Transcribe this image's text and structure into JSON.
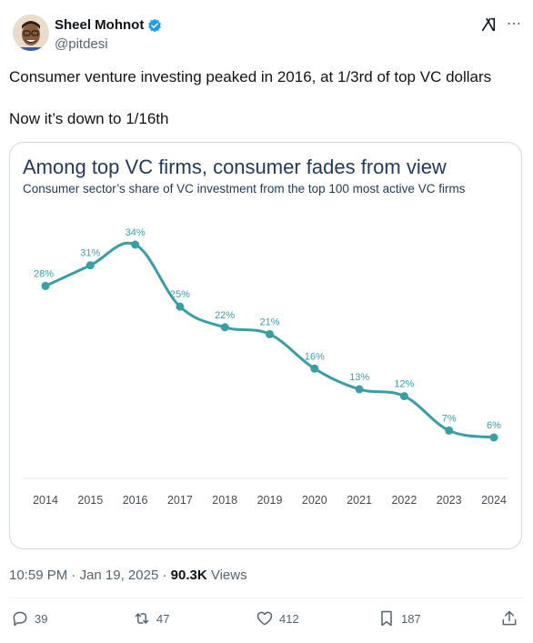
{
  "author": {
    "name": "Sheel Mohnot",
    "handle": "@pitdesi"
  },
  "tweet": {
    "line1": "Consumer venture investing peaked in 2016, at 1/3rd of top VC dollars",
    "line2": "Now it’s down to 1/16th"
  },
  "chart_data": {
    "type": "line",
    "title": "Among top VC firms, consumer fades from view",
    "subtitle": "Consumer sector’s share of VC investment from the top 100 most active VC firms",
    "x": [
      "2014",
      "2015",
      "2016",
      "2017",
      "2018",
      "2019",
      "2020",
      "2021",
      "2022",
      "2023",
      "2024"
    ],
    "series": [
      {
        "values": [
          28,
          31,
          34,
          25,
          22,
          21,
          16,
          13,
          12,
          7,
          6
        ],
        "labels": [
          "28%",
          "31%",
          "34%",
          "25%",
          "22%",
          "21%",
          "16%",
          "13%",
          "12%",
          "7%",
          "6%"
        ]
      }
    ],
    "ylim": [
      0,
      40
    ],
    "grid": false,
    "color": "#3a9ea5"
  },
  "meta": {
    "time": "10:59 PM",
    "date": "Jan 19, 2025",
    "views": "90.3K",
    "views_label": "Views"
  },
  "actions": {
    "replies": "39",
    "reposts": "47",
    "likes": "412",
    "bookmarks": "187"
  },
  "icons": {
    "verified": "verified-badge-icon",
    "grok": "grok-icon",
    "more": "more-icon",
    "reply": "reply-icon",
    "repost": "repost-icon",
    "like": "like-icon",
    "bookmark": "bookmark-icon",
    "share": "share-icon"
  }
}
